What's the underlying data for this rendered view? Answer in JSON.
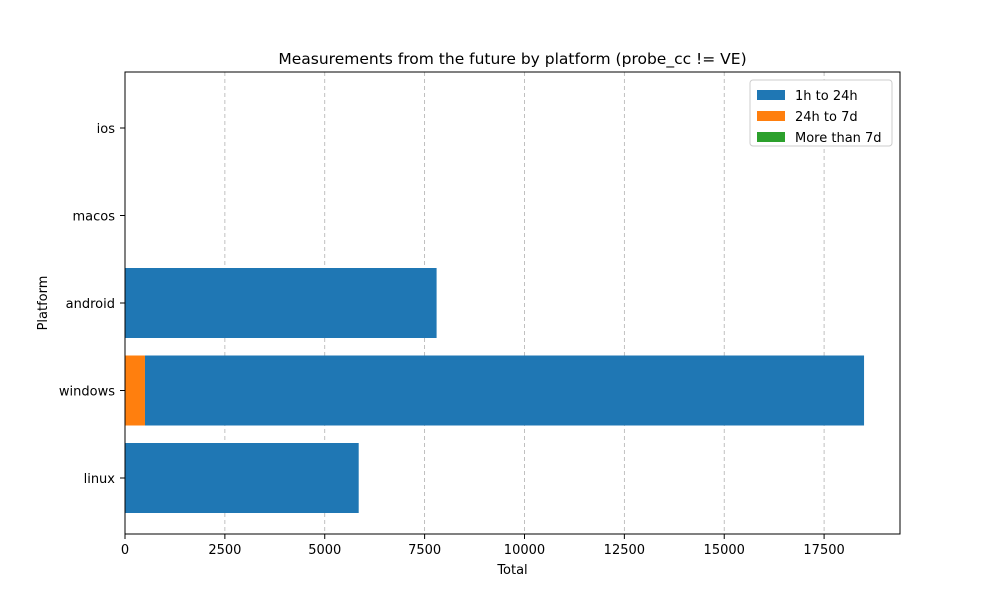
{
  "chart_data": {
    "type": "bar",
    "orientation": "horizontal",
    "stacked": true,
    "title": "Measurements from the future by platform (probe_cc != VE)",
    "xlabel": "Total",
    "ylabel": "Platform",
    "categories": [
      "linux",
      "windows",
      "android",
      "macos",
      "ios"
    ],
    "series": [
      {
        "name": "1h to 24h",
        "color": "#1f77b4",
        "values": [
          5850,
          18000,
          7800,
          0,
          0
        ]
      },
      {
        "name": "24h to 7d",
        "color": "#ff7f0e",
        "values": [
          0,
          500,
          0,
          0,
          0
        ]
      },
      {
        "name": "More than 7d",
        "color": "#2ca02c",
        "values": [
          0,
          0,
          0,
          0,
          0
        ]
      }
    ],
    "xlim": [
      0,
      19400
    ],
    "xticks": [
      0,
      2500,
      5000,
      7500,
      10000,
      12500,
      15000,
      17500
    ],
    "grid": "x-dashed",
    "legend_position": "top-right"
  }
}
